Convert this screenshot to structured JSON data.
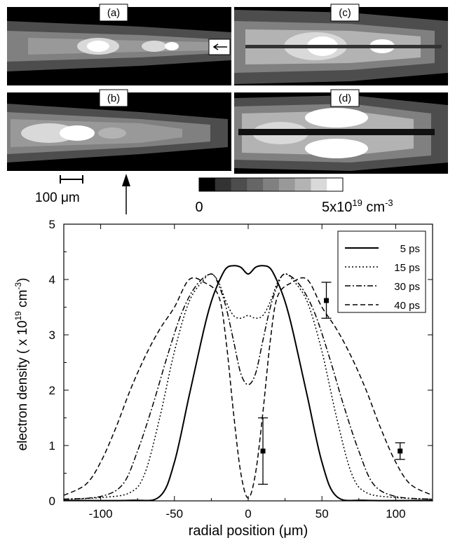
{
  "panels": {
    "labels": [
      "(a)",
      "(b)",
      "(c)",
      "(d)"
    ],
    "scale_bar": "100 μm",
    "colorbar": {
      "min_label": "0",
      "max_label_main": "5x10",
      "max_label_exp": "19",
      "max_label_unit": " cm",
      "max_label_unit_exp": "-3",
      "levels": [
        "#000000",
        "#333333",
        "#4d4d4d",
        "#666666",
        "#808080",
        "#999999",
        "#b3b3b3",
        "#d9d9d9",
        "#ffffff"
      ]
    }
  },
  "chart_data": {
    "type": "line",
    "xlabel": "radial position (μm)",
    "ylabel_main": "electron density ( x 10",
    "ylabel_exp": "19",
    "ylabel_unit": " cm",
    "ylabel_unit_exp": "-3",
    "ylabel_close": ")",
    "xlim": [
      -125,
      125
    ],
    "ylim": [
      0,
      5
    ],
    "xticks": [
      -100,
      -50,
      0,
      50,
      100
    ],
    "xtick_labels": [
      "-100",
      "-50",
      "0",
      "50",
      "100"
    ],
    "yticks": [
      0,
      1,
      2,
      3,
      4,
      5
    ],
    "ytick_labels": [
      "0",
      "1",
      "2",
      "3",
      "4",
      "5"
    ],
    "legend_position": "top-right",
    "series": [
      {
        "name": "5 ps",
        "dash": "solid",
        "x": [
          -125,
          -80,
          -60,
          -50,
          -40,
          -30,
          -25,
          -20,
          -15,
          -10,
          -5,
          0,
          5,
          10,
          15,
          20,
          25,
          30,
          40,
          50,
          60,
          80,
          125
        ],
        "y": [
          0.01,
          0.01,
          0.08,
          0.7,
          1.9,
          3.1,
          3.6,
          3.95,
          4.2,
          4.25,
          4.22,
          4.1,
          4.22,
          4.25,
          4.2,
          3.95,
          3.6,
          3.1,
          1.9,
          0.7,
          0.08,
          0.01,
          0.01
        ]
      },
      {
        "name": "15 ps",
        "dash": "dot",
        "x": [
          -125,
          -100,
          -80,
          -70,
          -60,
          -50,
          -40,
          -30,
          -25,
          -20,
          -15,
          -10,
          -5,
          0,
          5,
          10,
          15,
          20,
          25,
          30,
          40,
          50,
          60,
          70,
          80,
          100,
          125
        ],
        "y": [
          0.03,
          0.06,
          0.15,
          0.5,
          1.5,
          2.7,
          3.6,
          4.0,
          4.1,
          3.95,
          3.6,
          3.35,
          3.3,
          3.35,
          3.3,
          3.35,
          3.6,
          3.95,
          4.1,
          4.0,
          3.6,
          2.7,
          1.5,
          0.5,
          0.15,
          0.06,
          0.03
        ]
      },
      {
        "name": "30 ps",
        "dash": "dashdot",
        "x": [
          -125,
          -100,
          -85,
          -75,
          -65,
          -55,
          -45,
          -35,
          -25,
          -20,
          -15,
          -10,
          -5,
          0,
          5,
          10,
          15,
          20,
          25,
          35,
          45,
          55,
          65,
          75,
          85,
          100,
          125
        ],
        "y": [
          0.03,
          0.08,
          0.3,
          0.9,
          1.7,
          2.6,
          3.4,
          3.9,
          4.1,
          3.9,
          3.5,
          2.9,
          2.3,
          2.1,
          2.3,
          2.9,
          3.5,
          3.9,
          4.1,
          3.9,
          3.4,
          2.6,
          1.7,
          0.9,
          0.3,
          0.08,
          0.03
        ]
      },
      {
        "name": "40 ps",
        "dash": "dash",
        "x": [
          -125,
          -110,
          -100,
          -90,
          -80,
          -70,
          -60,
          -50,
          -40,
          -30,
          -20,
          -15,
          -10,
          -5,
          0,
          5,
          10,
          15,
          20,
          30,
          40,
          50,
          60,
          70,
          80,
          90,
          100,
          110,
          125
        ],
        "y": [
          0.1,
          0.3,
          0.7,
          1.3,
          2.0,
          2.6,
          3.1,
          3.5,
          4.0,
          3.95,
          3.7,
          2.9,
          1.6,
          0.5,
          0.05,
          0.5,
          1.6,
          2.9,
          3.7,
          3.95,
          4.0,
          3.5,
          3.1,
          2.6,
          2.0,
          1.3,
          0.7,
          0.3,
          0.1
        ]
      }
    ],
    "error_bars": [
      {
        "x": 10,
        "y": 0.9,
        "lo": 0.3,
        "hi": 1.5
      },
      {
        "x": 53,
        "y": 3.62,
        "lo": 3.3,
        "hi": 3.95
      },
      {
        "x": 103,
        "y": 0.9,
        "lo": 0.75,
        "hi": 1.05
      }
    ]
  }
}
